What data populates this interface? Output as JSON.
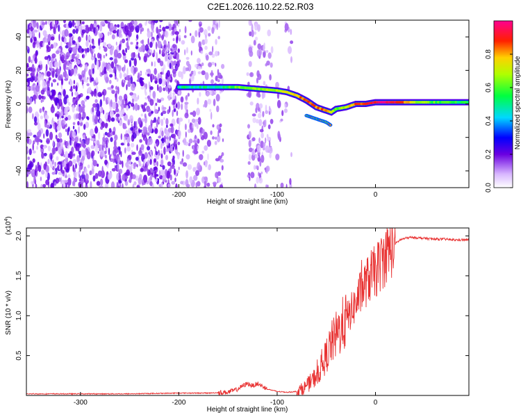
{
  "figure_title": "C2E1.2026.110.22.52.R03",
  "chart_data": [
    {
      "type": "heatmap",
      "xlabel": "Height of straight line (km)",
      "ylabel": "Frequency (Hz)",
      "xlim": [
        -355,
        95
      ],
      "ylim": [
        -50,
        50
      ],
      "xticks": [
        -300,
        -200,
        -100,
        0
      ],
      "yticks": [
        -40,
        -20,
        0,
        20,
        40
      ],
      "colorbar": {
        "label": "Normalized spectral amplitude",
        "range": [
          0,
          1
        ],
        "ticks": [
          "0.0",
          "0.2",
          "0.4",
          "0.6",
          "0.8"
        ],
        "tick_values": [
          0.0,
          0.2,
          0.4,
          0.6,
          0.8
        ],
        "colormap": "rainbow (white-violet-blue-cyan-green-yellow-red-magenta)"
      },
      "noise_regions": [
        {
          "x": [
            -355,
            -200
          ],
          "density": "high"
        },
        {
          "x": [
            -200,
            -155
          ],
          "density": "medium"
        },
        {
          "x": [
            -130,
            -105
          ],
          "density": "medium"
        },
        {
          "x": [
            -100,
            -85
          ],
          "density": "low"
        }
      ],
      "signal_track": {
        "x": [
          -200,
          -180,
          -160,
          -140,
          -120,
          -100,
          -90,
          -80,
          -70,
          -60,
          -50,
          -45,
          -40,
          -30,
          -20,
          -10,
          0,
          10,
          20,
          40,
          60,
          80,
          95
        ],
        "y": [
          10,
          10,
          10,
          10,
          9,
          8,
          7,
          5,
          2,
          -2,
          -4,
          -5,
          -3,
          -2,
          0,
          0,
          1,
          1,
          1,
          1,
          1,
          1,
          1
        ],
        "amplitude": [
          0.5,
          0.5,
          0.5,
          0.6,
          0.65,
          0.7,
          0.75,
          0.8,
          0.85,
          0.85,
          0.8,
          0.7,
          0.6,
          0.7,
          0.85,
          0.9,
          0.95,
          0.95,
          0.95,
          0.7,
          0.6,
          0.55,
          0.55
        ]
      },
      "secondary_track": {
        "x": [
          -70,
          -60,
          -50,
          -45
        ],
        "y": [
          -7,
          -9,
          -11,
          -13
        ]
      }
    },
    {
      "type": "line",
      "xlabel": "Height of straight line (km)",
      "ylabel": "SNR (10 * v/v)",
      "y_scale_label": "(x10",
      "y_scale_exp": "4",
      "y_scale_suffix": ")",
      "xlim": [
        -355,
        95
      ],
      "ylim": [
        0,
        2.1
      ],
      "xticks": [
        -300,
        -200,
        -100,
        0
      ],
      "yticks": [
        "0.5",
        "1.0",
        "1.5",
        "2.0"
      ],
      "ytick_values": [
        0.5,
        1.0,
        1.5,
        2.0
      ],
      "series": [
        {
          "color": "#e83030",
          "x": [
            -355,
            -300,
            -250,
            -200,
            -170,
            -150,
            -140,
            -135,
            -130,
            -125,
            -120,
            -110,
            -100,
            -90,
            -80,
            -75,
            -70,
            -65,
            -60,
            -55,
            -50,
            -45,
            -40,
            -35,
            -30,
            -25,
            -20,
            -15,
            -10,
            -5,
            0,
            5,
            10,
            15,
            20,
            25,
            30,
            35,
            40,
            50,
            60,
            70,
            80,
            95
          ],
          "y": [
            0.02,
            0.02,
            0.02,
            0.03,
            0.03,
            0.04,
            0.08,
            0.12,
            0.15,
            0.12,
            0.15,
            0.08,
            0.05,
            0.04,
            0.05,
            0.08,
            0.12,
            0.18,
            0.25,
            0.35,
            0.5,
            0.65,
            0.75,
            0.85,
            0.95,
            1.05,
            1.15,
            1.3,
            1.4,
            1.5,
            1.55,
            1.65,
            1.75,
            1.85,
            1.9,
            1.95,
            1.97,
            1.98,
            1.98,
            1.97,
            1.96,
            1.96,
            1.95,
            1.95
          ]
        }
      ]
    }
  ]
}
